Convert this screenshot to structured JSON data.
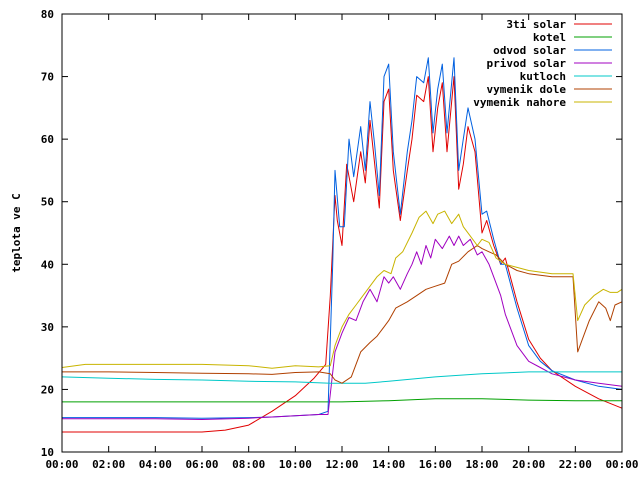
{
  "chart_data": {
    "type": "line",
    "ylabel": "teplota ve C",
    "ylim": [
      10,
      80
    ],
    "yticks": [
      "10",
      "20",
      "30",
      "40",
      "50",
      "60",
      "70",
      "80"
    ],
    "xlim": [
      0,
      24
    ],
    "xticks": [
      "00:00",
      "02:00",
      "04:00",
      "06:00",
      "08:00",
      "10:00",
      "12:00",
      "14:00",
      "16:00",
      "18:00",
      "20:00",
      "22:00",
      "00:00"
    ],
    "grid": false,
    "legend_position": "top-right",
    "series": [
      {
        "name": "3ti solar",
        "color": "#e00000",
        "points": [
          [
            0,
            13.2
          ],
          [
            6,
            13.2
          ],
          [
            7,
            13.5
          ],
          [
            8,
            14.3
          ],
          [
            9,
            16.5
          ],
          [
            10,
            19.0
          ],
          [
            10.8,
            21.8
          ],
          [
            11.3,
            24.0
          ],
          [
            11.5,
            35.0
          ],
          [
            11.7,
            51.0
          ],
          [
            11.8,
            47.0
          ],
          [
            12.0,
            43.0
          ],
          [
            12.2,
            56.0
          ],
          [
            12.5,
            50.0
          ],
          [
            12.8,
            58.0
          ],
          [
            13.0,
            53.0
          ],
          [
            13.2,
            63.0
          ],
          [
            13.4,
            56.0
          ],
          [
            13.6,
            49.0
          ],
          [
            13.8,
            66.0
          ],
          [
            14.0,
            68.0
          ],
          [
            14.2,
            55.0
          ],
          [
            14.5,
            47.0
          ],
          [
            14.8,
            55.0
          ],
          [
            15.0,
            60.0
          ],
          [
            15.2,
            67.0
          ],
          [
            15.5,
            66.0
          ],
          [
            15.7,
            70.0
          ],
          [
            15.9,
            58.0
          ],
          [
            16.1,
            65.0
          ],
          [
            16.3,
            69.0
          ],
          [
            16.5,
            58.0
          ],
          [
            16.8,
            70.0
          ],
          [
            17.0,
            52.0
          ],
          [
            17.2,
            56.0
          ],
          [
            17.4,
            62.0
          ],
          [
            17.7,
            58.0
          ],
          [
            18.0,
            45.0
          ],
          [
            18.2,
            47.0
          ],
          [
            18.5,
            43.0
          ],
          [
            18.8,
            40.0
          ],
          [
            19.0,
            41.0
          ],
          [
            19.5,
            34.0
          ],
          [
            20.0,
            28.0
          ],
          [
            20.5,
            25.0
          ],
          [
            21.0,
            23.0
          ],
          [
            22.0,
            20.5
          ],
          [
            23.0,
            18.5
          ],
          [
            24.0,
            17.0
          ]
        ]
      },
      {
        "name": "kotel",
        "color": "#00a000",
        "points": [
          [
            0,
            18.0
          ],
          [
            4,
            18.0
          ],
          [
            8,
            18.0
          ],
          [
            11,
            18.0
          ],
          [
            12,
            18.0
          ],
          [
            14,
            18.2
          ],
          [
            16,
            18.5
          ],
          [
            18,
            18.5
          ],
          [
            20,
            18.3
          ],
          [
            22,
            18.2
          ],
          [
            24,
            18.2
          ]
        ]
      },
      {
        "name": "odvod solar",
        "color": "#0060e0",
        "points": [
          [
            0,
            15.5
          ],
          [
            4,
            15.5
          ],
          [
            6,
            15.4
          ],
          [
            8,
            15.5
          ],
          [
            9,
            15.6
          ],
          [
            10,
            15.8
          ],
          [
            11,
            16.0
          ],
          [
            11.4,
            16.5
          ],
          [
            11.6,
            40.0
          ],
          [
            11.7,
            55.0
          ],
          [
            11.9,
            46.0
          ],
          [
            12.1,
            46.0
          ],
          [
            12.3,
            60.0
          ],
          [
            12.5,
            54.0
          ],
          [
            12.8,
            62.0
          ],
          [
            13.0,
            55.0
          ],
          [
            13.2,
            66.0
          ],
          [
            13.4,
            59.0
          ],
          [
            13.6,
            51.0
          ],
          [
            13.8,
            70.0
          ],
          [
            14.0,
            72.0
          ],
          [
            14.2,
            58.0
          ],
          [
            14.5,
            48.0
          ],
          [
            14.8,
            58.0
          ],
          [
            15.0,
            63.0
          ],
          [
            15.2,
            70.0
          ],
          [
            15.5,
            69.0
          ],
          [
            15.7,
            73.0
          ],
          [
            15.9,
            61.0
          ],
          [
            16.1,
            68.0
          ],
          [
            16.3,
            72.0
          ],
          [
            16.5,
            61.0
          ],
          [
            16.8,
            73.0
          ],
          [
            17.0,
            55.0
          ],
          [
            17.2,
            60.0
          ],
          [
            17.4,
            65.0
          ],
          [
            17.7,
            60.0
          ],
          [
            18.0,
            48.0
          ],
          [
            18.2,
            48.5
          ],
          [
            18.5,
            44.0
          ],
          [
            18.8,
            40.0
          ],
          [
            19.0,
            40.0
          ],
          [
            19.5,
            33.0
          ],
          [
            20.0,
            27.0
          ],
          [
            20.5,
            24.5
          ],
          [
            21.0,
            23.0
          ],
          [
            22.0,
            21.5
          ],
          [
            23.0,
            20.5
          ],
          [
            24.0,
            20.0
          ]
        ]
      },
      {
        "name": "privod solar",
        "color": "#a000c0",
        "points": [
          [
            0,
            15.3
          ],
          [
            4,
            15.3
          ],
          [
            6,
            15.2
          ],
          [
            8,
            15.4
          ],
          [
            9,
            15.6
          ],
          [
            10,
            15.8
          ],
          [
            11,
            16.0
          ],
          [
            11.4,
            16.0
          ],
          [
            11.7,
            26.0
          ],
          [
            12.0,
            29.0
          ],
          [
            12.3,
            31.5
          ],
          [
            12.6,
            31.0
          ],
          [
            12.9,
            34.0
          ],
          [
            13.2,
            36.0
          ],
          [
            13.5,
            34.0
          ],
          [
            13.8,
            38.0
          ],
          [
            14.0,
            37.0
          ],
          [
            14.2,
            38.0
          ],
          [
            14.5,
            36.0
          ],
          [
            14.8,
            38.5
          ],
          [
            15.0,
            40.0
          ],
          [
            15.2,
            42.0
          ],
          [
            15.4,
            40.0
          ],
          [
            15.6,
            43.0
          ],
          [
            15.8,
            41.0
          ],
          [
            16.0,
            44.0
          ],
          [
            16.3,
            42.5
          ],
          [
            16.6,
            44.5
          ],
          [
            16.8,
            43.0
          ],
          [
            17.0,
            44.5
          ],
          [
            17.2,
            43.0
          ],
          [
            17.5,
            44.0
          ],
          [
            17.8,
            41.5
          ],
          [
            18.0,
            42.0
          ],
          [
            18.3,
            40.0
          ],
          [
            18.5,
            38.0
          ],
          [
            18.8,
            35.0
          ],
          [
            19.0,
            32.0
          ],
          [
            19.5,
            27.0
          ],
          [
            20.0,
            24.5
          ],
          [
            20.5,
            23.5
          ],
          [
            21.0,
            22.5
          ],
          [
            22.0,
            21.5
          ],
          [
            23.0,
            21.0
          ],
          [
            24.0,
            20.5
          ]
        ]
      },
      {
        "name": "kutloch",
        "color": "#00c8c8",
        "points": [
          [
            0,
            22.0
          ],
          [
            2,
            21.8
          ],
          [
            4,
            21.6
          ],
          [
            6,
            21.5
          ],
          [
            8,
            21.3
          ],
          [
            10,
            21.2
          ],
          [
            11.5,
            21.0
          ],
          [
            12,
            21.0
          ],
          [
            13,
            21.0
          ],
          [
            14,
            21.3
          ],
          [
            16,
            22.0
          ],
          [
            18,
            22.5
          ],
          [
            20,
            22.8
          ],
          [
            22,
            22.8
          ],
          [
            24,
            22.8
          ]
        ]
      },
      {
        "name": "vymenik dole",
        "color": "#b04000",
        "points": [
          [
            0,
            22.8
          ],
          [
            2,
            22.8
          ],
          [
            4,
            22.7
          ],
          [
            6,
            22.6
          ],
          [
            8,
            22.5
          ],
          [
            9,
            22.4
          ],
          [
            10,
            22.7
          ],
          [
            11,
            22.8
          ],
          [
            11.5,
            22.5
          ],
          [
            11.7,
            21.5
          ],
          [
            12.0,
            21.0
          ],
          [
            12.4,
            22.0
          ],
          [
            12.8,
            26.0
          ],
          [
            13.2,
            27.5
          ],
          [
            13.5,
            28.5
          ],
          [
            13.8,
            30.0
          ],
          [
            14.0,
            31.0
          ],
          [
            14.3,
            33.0
          ],
          [
            14.8,
            34.0
          ],
          [
            15.2,
            35.0
          ],
          [
            15.6,
            36.0
          ],
          [
            16.0,
            36.5
          ],
          [
            16.4,
            37.0
          ],
          [
            16.7,
            40.0
          ],
          [
            17.0,
            40.5
          ],
          [
            17.4,
            42.0
          ],
          [
            17.8,
            43.0
          ],
          [
            18.0,
            42.5
          ],
          [
            18.3,
            42.0
          ],
          [
            18.6,
            41.5
          ],
          [
            19.0,
            40.0
          ],
          [
            19.5,
            39.0
          ],
          [
            20.0,
            38.5
          ],
          [
            21.0,
            38.0
          ],
          [
            21.9,
            38.0
          ],
          [
            22.1,
            26.0
          ],
          [
            22.3,
            28.0
          ],
          [
            22.6,
            31.0
          ],
          [
            23.0,
            34.0
          ],
          [
            23.3,
            33.0
          ],
          [
            23.5,
            31.0
          ],
          [
            23.7,
            33.5
          ],
          [
            24.0,
            34.0
          ]
        ]
      },
      {
        "name": "vymenik nahore",
        "color": "#c8b400",
        "points": [
          [
            0,
            23.5
          ],
          [
            1,
            24.0
          ],
          [
            2,
            24.0
          ],
          [
            4,
            24.0
          ],
          [
            6,
            24.0
          ],
          [
            8,
            23.8
          ],
          [
            9,
            23.4
          ],
          [
            10,
            23.8
          ],
          [
            11,
            23.6
          ],
          [
            11.5,
            23.8
          ],
          [
            11.7,
            27.0
          ],
          [
            12.0,
            30.0
          ],
          [
            12.3,
            32.0
          ],
          [
            12.6,
            33.5
          ],
          [
            12.9,
            35.0
          ],
          [
            13.2,
            36.5
          ],
          [
            13.5,
            38.0
          ],
          [
            13.8,
            39.0
          ],
          [
            14.1,
            38.5
          ],
          [
            14.3,
            41.0
          ],
          [
            14.6,
            42.0
          ],
          [
            15.0,
            45.0
          ],
          [
            15.3,
            47.5
          ],
          [
            15.6,
            48.5
          ],
          [
            15.9,
            46.5
          ],
          [
            16.1,
            48.0
          ],
          [
            16.4,
            48.5
          ],
          [
            16.7,
            46.5
          ],
          [
            17.0,
            48.0
          ],
          [
            17.2,
            46.0
          ],
          [
            17.5,
            44.5
          ],
          [
            17.8,
            43.0
          ],
          [
            18.0,
            44.0
          ],
          [
            18.3,
            43.5
          ],
          [
            18.6,
            41.0
          ],
          [
            19.0,
            40.0
          ],
          [
            19.5,
            39.5
          ],
          [
            20.0,
            39.0
          ],
          [
            21.0,
            38.5
          ],
          [
            21.9,
            38.5
          ],
          [
            22.1,
            31.0
          ],
          [
            22.4,
            33.5
          ],
          [
            22.8,
            35.0
          ],
          [
            23.2,
            36.0
          ],
          [
            23.5,
            35.5
          ],
          [
            23.8,
            35.5
          ],
          [
            24.0,
            36.0
          ]
        ]
      }
    ]
  }
}
